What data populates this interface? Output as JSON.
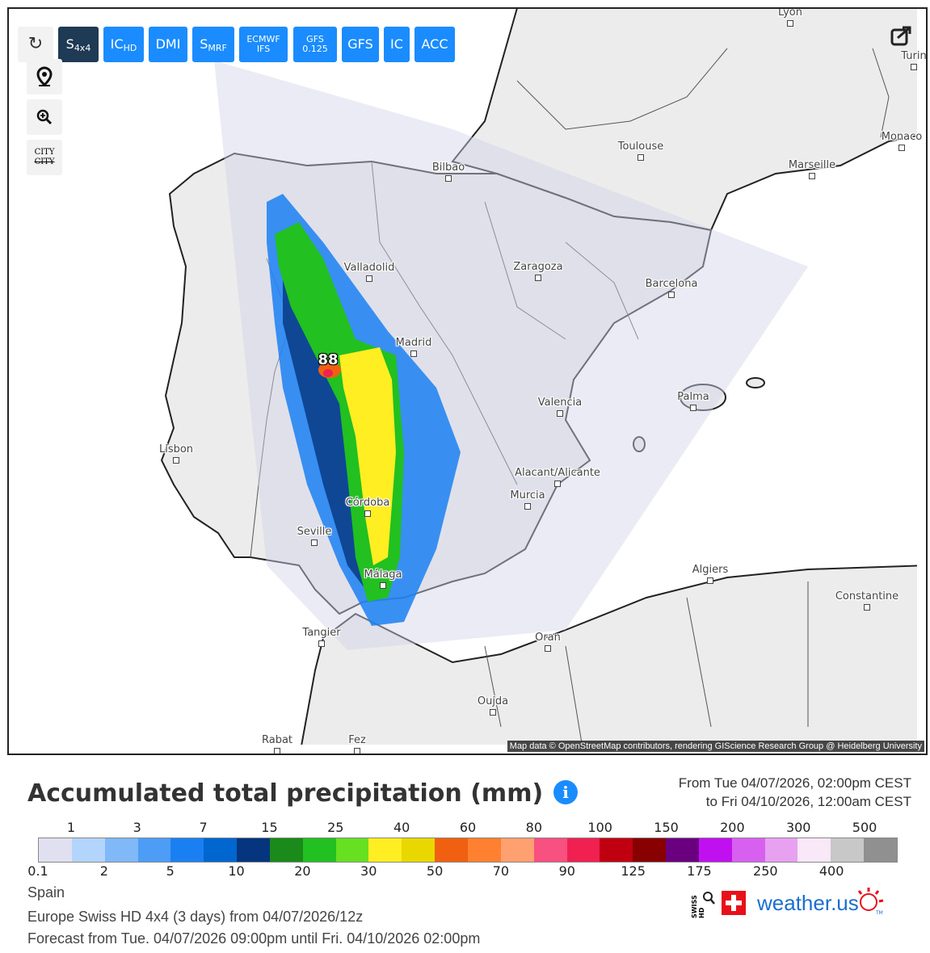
{
  "toolbar": {
    "buttons": [
      {
        "main": "S",
        "sub": "4x4"
      },
      {
        "main": "IC",
        "sub": "HD"
      },
      {
        "main": "DMI"
      },
      {
        "main": "S",
        "sub": "MRF"
      },
      {
        "lines": [
          "ECMWF",
          "IFS"
        ]
      },
      {
        "lines": [
          "GFS",
          "0.125"
        ]
      },
      {
        "main": "GFS"
      },
      {
        "main": "IC"
      },
      {
        "main": "ACC"
      }
    ],
    "city_tool": [
      "CITY",
      "CITY"
    ]
  },
  "map": {
    "cities": [
      "Lyon",
      "Turin",
      "Toulouse",
      "Monaco",
      "Marseille",
      "Bilbao",
      "Valladolid",
      "Zaragoza",
      "Barcelona",
      "Madrid",
      "Palma",
      "Valencia",
      "Lisbon",
      "Alacant/Alicante",
      "Murcia",
      "Córdoba",
      "Seville",
      "Málaga",
      "Algiers",
      "Constantine",
      "Tangier",
      "Oran",
      "Oujda",
      "Rabat",
      "Fez"
    ],
    "max_label": "88",
    "attribution": "Map data © OpenStreetMap contributors, rendering GIScience Research Group @ Heidelberg University"
  },
  "legend": {
    "title": "Accumulated total precipitation (mm)",
    "info": "i",
    "from": "From Tue 04/07/2026, 02:00pm CEST",
    "to": "to Fri 04/10/2026, 12:00am CEST",
    "labels": [
      "0.1",
      "1",
      "2",
      "3",
      "5",
      "7",
      "10",
      "15",
      "20",
      "25",
      "30",
      "40",
      "50",
      "60",
      "70",
      "80",
      "90",
      "100",
      "125",
      "150",
      "175",
      "200",
      "250",
      "300",
      "400",
      "500"
    ],
    "colors": [
      "#e0e0f0",
      "#b3d4fb",
      "#80b8f8",
      "#4d9cf5",
      "#1a80f2",
      "#0066d0",
      "#05357e",
      "#1a8a1a",
      "#22c020",
      "#66e020",
      "#ffee22",
      "#e8d800",
      "#f06010",
      "#ff8030",
      "#ffa070",
      "#f85080",
      "#f02050",
      "#c00010",
      "#880000",
      "#6a0080",
      "#c010f0",
      "#d860f0",
      "#e8a0f0",
      "#f8e8f8",
      "#c8c8c8",
      "#909090"
    ]
  },
  "footer": {
    "lines": [
      "Spain",
      "Europe Swiss HD 4x4 (3 days) from 04/07/2026/12z",
      "Forecast from Tue. 04/07/2026 09:00pm until Fri. 04/10/2026 02:00pm"
    ]
  },
  "logo": {
    "badge": "SWISS HD",
    "brand": "weather.us",
    "tm": "TM"
  }
}
